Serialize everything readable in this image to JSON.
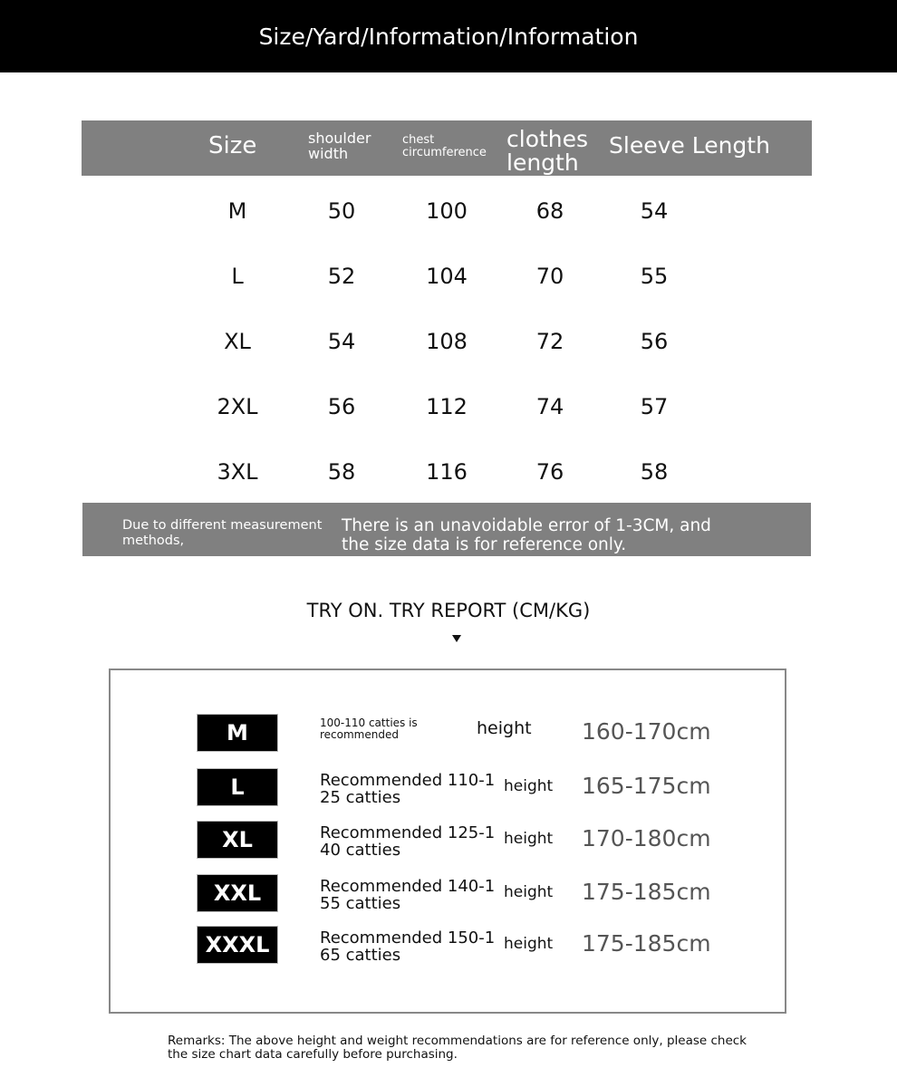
{
  "title": "Size/Yard/Information/Information",
  "table": {
    "headers": [
      "Size",
      "shoulder width",
      "chest circumference",
      "clothes length",
      "Sleeve Length"
    ],
    "rows": [
      [
        "M",
        "50",
        "100",
        "68",
        "54"
      ],
      [
        "L",
        "52",
        "104",
        "70",
        "55"
      ],
      [
        "XL",
        "54",
        "108",
        "72",
        "56"
      ],
      [
        "2XL",
        "56",
        "112",
        "74",
        "57"
      ],
      [
        "3XL",
        "58",
        "116",
        "76",
        "58"
      ]
    ]
  },
  "note": {
    "left": "Due to different measurement methods,",
    "right": "There is an unavoidable error of 1-3CM, and the size data is for reference only."
  },
  "try_report": {
    "title": "TRY ON. TRY REPORT (CM/KG)",
    "rows": [
      {
        "size": "M",
        "weight": "100-110 catties is recommended",
        "height_label": "height",
        "height": "160-170cm"
      },
      {
        "size": "L",
        "weight": "Recommended 110-125 catties",
        "height_label": "height",
        "height": "165-175cm"
      },
      {
        "size": "XL",
        "weight": "Recommended 125-140 catties",
        "height_label": "height",
        "height": "170-180cm"
      },
      {
        "size": "XXL",
        "weight": "Recommended 140-155 catties",
        "height_label": "height",
        "height": "175-185cm"
      },
      {
        "size": "XXXL",
        "weight": "Recommended 150-165 catties",
        "height_label": "height",
        "height": "175-185cm"
      }
    ]
  },
  "remarks": "Remarks: The above height and weight recommendations are for reference only, please check the size chart data carefully before purchasing."
}
